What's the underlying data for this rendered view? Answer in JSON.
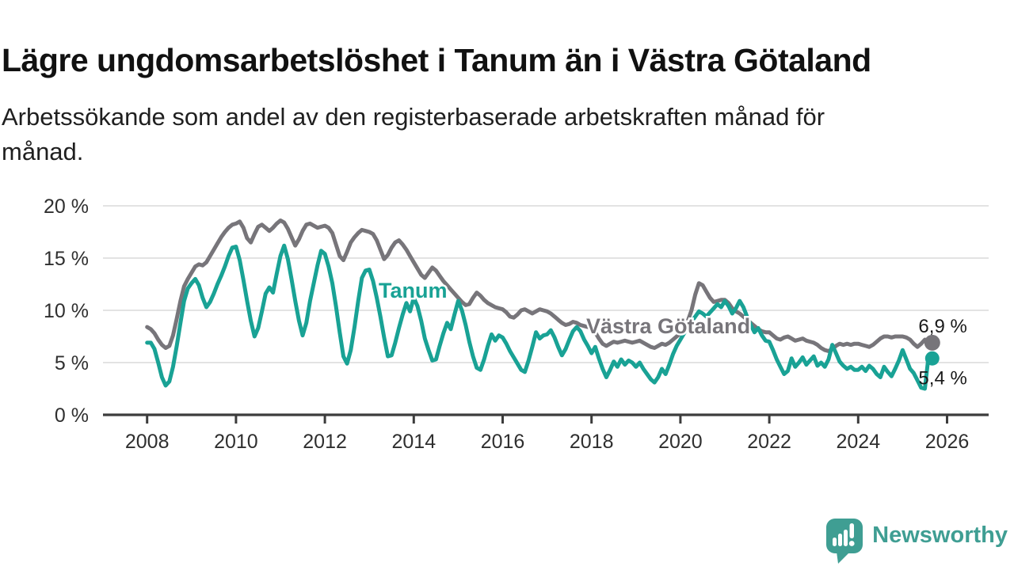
{
  "header": {
    "title": "Lägre ungdomsarbetslöshet i Tanum än i Västra Götaland",
    "subtitle_line1": "Arbetssökande som andel av den registerbaserade arbetskraften månad för",
    "subtitle_line2": "månad."
  },
  "chart_data": {
    "type": "line",
    "frequency": "monthly",
    "x_start": "2008-01",
    "x_end": "2025-09",
    "ylim": [
      0,
      20
    ],
    "y_ticks": [
      0,
      5,
      10,
      15,
      20
    ],
    "y_tick_suffix": " %",
    "x_ticks": [
      2008,
      2010,
      2012,
      2014,
      2016,
      2018,
      2020,
      2022,
      2024,
      2026
    ],
    "grid": "horizontal",
    "legend": "inline-labels",
    "colors": {
      "grid": "#DADADA",
      "axis": "#3C3C3C",
      "tick_text": "#2F2F2F",
      "value_text": "#1A1A1A"
    },
    "series": [
      {
        "name": "Västra Götaland",
        "color": "#77757A",
        "end_label": "6,9 %",
        "end_value": 6.9,
        "values": [
          8.4,
          8.2,
          7.8,
          7.2,
          6.7,
          6.4,
          6.6,
          7.6,
          9.2,
          10.9,
          12.3,
          13.0,
          13.6,
          14.2,
          14.4,
          14.3,
          14.6,
          15.2,
          15.8,
          16.4,
          17.0,
          17.5,
          17.9,
          18.2,
          18.3,
          18.5,
          17.9,
          16.9,
          16.5,
          17.3,
          18.0,
          18.2,
          17.9,
          17.6,
          17.9,
          18.3,
          18.6,
          18.4,
          17.8,
          17.0,
          16.2,
          16.8,
          17.6,
          18.2,
          18.3,
          18.1,
          17.9,
          18.0,
          18.1,
          17.9,
          17.4,
          16.3,
          15.2,
          14.8,
          15.6,
          16.5,
          17.0,
          17.4,
          17.7,
          17.6,
          17.5,
          17.3,
          16.7,
          15.8,
          14.9,
          15.3,
          16.0,
          16.5,
          16.7,
          16.3,
          15.8,
          15.2,
          14.6,
          14.0,
          13.4,
          13.1,
          13.6,
          14.1,
          13.8,
          13.3,
          12.8,
          12.4,
          12.0,
          11.6,
          11.2,
          10.8,
          10.5,
          10.6,
          11.2,
          11.7,
          11.4,
          11.0,
          10.7,
          10.5,
          10.3,
          10.2,
          10.1,
          9.8,
          9.4,
          9.3,
          9.6,
          10.0,
          10.1,
          9.9,
          9.7,
          9.9,
          10.1,
          10.0,
          9.9,
          9.7,
          9.4,
          9.1,
          8.8,
          8.6,
          8.7,
          8.9,
          8.8,
          8.6,
          8.5,
          8.4,
          8.3,
          7.9,
          7.3,
          6.8,
          6.6,
          6.8,
          7.0,
          6.9,
          7.0,
          7.1,
          7.0,
          6.9,
          7.0,
          7.1,
          6.9,
          6.7,
          6.5,
          6.4,
          6.6,
          6.8,
          6.7,
          6.9,
          7.2,
          7.5,
          7.8,
          8.2,
          9.0,
          10.0,
          11.5,
          12.6,
          12.4,
          11.8,
          11.2,
          10.8,
          10.9,
          11.0,
          11.0,
          10.7,
          10.2,
          9.9,
          9.7,
          9.4,
          9.1,
          8.8,
          8.5,
          8.2,
          8.0,
          7.9,
          7.9,
          7.6,
          7.3,
          7.2,
          7.4,
          7.5,
          7.3,
          7.1,
          7.2,
          7.3,
          7.1,
          7.0,
          6.9,
          6.7,
          6.4,
          6.2,
          6.1,
          6.3,
          6.6,
          6.8,
          6.7,
          6.8,
          6.7,
          6.8,
          6.8,
          6.7,
          6.6,
          6.5,
          6.7,
          7.0,
          7.3,
          7.5,
          7.5,
          7.4,
          7.5,
          7.5,
          7.5,
          7.4,
          7.2,
          6.8,
          6.5,
          6.8,
          7.2,
          7.1,
          6.9
        ]
      },
      {
        "name": "Tanum",
        "color": "#19A295",
        "end_label": "5,4 %",
        "end_value": 5.4,
        "values": [
          6.9,
          6.9,
          6.3,
          5.0,
          3.6,
          2.8,
          3.2,
          4.6,
          6.6,
          8.8,
          10.9,
          12.1,
          12.6,
          13.0,
          12.4,
          11.2,
          10.3,
          10.8,
          11.6,
          12.5,
          13.3,
          14.2,
          15.2,
          16.0,
          16.1,
          14.8,
          12.9,
          10.9,
          9.0,
          7.5,
          8.3,
          9.9,
          11.6,
          12.2,
          11.7,
          13.5,
          15.2,
          16.2,
          14.9,
          13.0,
          10.9,
          9.0,
          7.6,
          8.8,
          10.9,
          12.6,
          14.3,
          15.7,
          15.4,
          14.2,
          12.6,
          10.4,
          7.9,
          5.6,
          4.9,
          6.2,
          8.4,
          10.9,
          13.1,
          13.8,
          13.9,
          12.8,
          11.2,
          9.4,
          7.4,
          5.6,
          5.7,
          6.9,
          8.3,
          9.6,
          10.7,
          9.9,
          11.2,
          10.4,
          9.0,
          7.3,
          6.2,
          5.2,
          5.3,
          6.6,
          7.8,
          8.8,
          8.2,
          9.6,
          10.9,
          10.0,
          8.6,
          7.0,
          5.6,
          4.5,
          4.3,
          5.3,
          6.6,
          7.7,
          7.1,
          7.6,
          7.4,
          6.8,
          6.1,
          5.5,
          4.9,
          4.3,
          4.1,
          5.2,
          6.5,
          7.9,
          7.3,
          7.6,
          7.7,
          8.1,
          7.4,
          6.5,
          5.7,
          6.3,
          7.2,
          8.0,
          8.4,
          8.0,
          7.2,
          6.6,
          5.9,
          6.5,
          5.4,
          4.4,
          3.6,
          4.3,
          5.1,
          4.6,
          5.3,
          4.8,
          5.2,
          5.0,
          4.6,
          5.0,
          4.4,
          3.9,
          3.4,
          3.1,
          3.6,
          4.4,
          3.9,
          4.8,
          5.8,
          6.6,
          7.2,
          7.8,
          8.4,
          8.9,
          9.4,
          9.9,
          9.7,
          9.4,
          9.8,
          10.2,
          10.6,
          10.3,
          10.9,
          10.4,
          9.7,
          10.2,
          10.9,
          10.3,
          9.4,
          8.6,
          7.9,
          8.3,
          7.6,
          7.1,
          7.0,
          6.2,
          5.3,
          4.6,
          3.9,
          4.2,
          5.4,
          4.6,
          5.0,
          5.5,
          4.8,
          5.2,
          5.6,
          4.7,
          5.0,
          4.6,
          5.3,
          6.7,
          5.9,
          5.1,
          4.7,
          4.4,
          4.6,
          4.3,
          4.3,
          4.6,
          4.2,
          4.7,
          4.4,
          3.9,
          3.6,
          4.6,
          4.1,
          3.7,
          4.4,
          5.2,
          6.2,
          5.3,
          4.4,
          4.0,
          3.3,
          2.6,
          2.5,
          5.6,
          5.4
        ]
      }
    ]
  },
  "branding": {
    "logo_text": "Newsworthy",
    "logo_color": "#3F9E93"
  }
}
